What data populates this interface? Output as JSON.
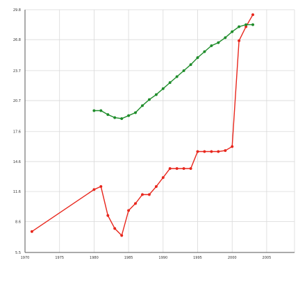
{
  "chart_data": {
    "type": "line",
    "title": "",
    "xlabel": "",
    "ylabel": "",
    "grid": true,
    "legend": "none",
    "xlim": [
      1970,
      2000
    ],
    "ylim": [
      5.5,
      30.0
    ],
    "x_ticks": [
      1970,
      1975,
      1980,
      1985,
      1990,
      1995,
      2000,
      2005
    ],
    "x_tick_labels": [
      "1970",
      "1975",
      "1980",
      "1985",
      "1990",
      "1995",
      "2000",
      "2005"
    ],
    "y_ticks": [
      5.5,
      8.6,
      11.6,
      14.6,
      17.6,
      20.7,
      23.7,
      26.8,
      29.8
    ],
    "y_tick_labels": [
      "5.5",
      "8.6",
      "11.6",
      "14.6",
      "17.6",
      "20.7",
      "23.7",
      "26.8",
      "29.8"
    ],
    "series": [
      {
        "color": "#e8261c",
        "x": [
          1971,
          1980,
          1981,
          1982,
          1983,
          1984,
          1985,
          1986,
          1987,
          1988,
          1989,
          1990,
          1991,
          1992,
          1993,
          1994,
          1995,
          1996,
          1997,
          1998,
          1999,
          2000,
          2001,
          2002,
          2003
        ],
        "y": [
          7.6,
          11.8,
          12.1,
          9.2,
          7.9,
          7.2,
          9.7,
          10.4,
          11.3,
          11.3,
          12.1,
          13.0,
          13.9,
          13.9,
          13.9,
          13.9,
          15.6,
          15.6,
          15.6,
          15.6,
          15.7,
          16.1,
          26.7,
          28.1,
          29.3
        ]
      },
      {
        "color": "#1e8c2a",
        "x": [
          1980,
          1981,
          1982,
          1983,
          1984,
          1985,
          1986,
          1987,
          1988,
          1989,
          1990,
          1991,
          1992,
          1993,
          1994,
          1995,
          1996,
          1997,
          1998,
          1999,
          2000,
          2001,
          2002,
          2003
        ],
        "y": [
          19.7,
          19.7,
          19.3,
          19.0,
          18.9,
          19.2,
          19.5,
          20.2,
          20.8,
          21.3,
          21.9,
          22.5,
          23.1,
          23.7,
          24.3,
          25.0,
          25.6,
          26.2,
          26.5,
          27.0,
          27.6,
          28.1,
          28.3,
          28.3
        ]
      }
    ]
  }
}
